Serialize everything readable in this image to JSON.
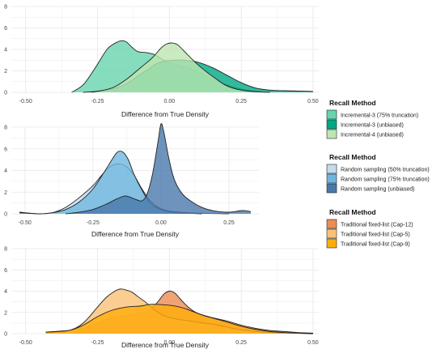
{
  "colors": {
    "grid": "#e6e6e6",
    "outline": "#222222"
  },
  "chart_data": [
    {
      "type": "area",
      "subtype": "density",
      "xlabel": "Difference from True Density",
      "ylabel": "",
      "xlim": [
        -0.55,
        0.52
      ],
      "ylim": [
        0,
        8
      ],
      "xticks": [
        -0.5,
        -0.25,
        0.0,
        0.25,
        0.5
      ],
      "xtick_labels": [
        "-0.50",
        "-0.25",
        "0.00",
        "0.25",
        "0.50"
      ],
      "yticks": [
        0,
        2,
        4,
        6,
        8
      ],
      "ytick_labels": [
        "0",
        "2",
        "4",
        "6",
        "8"
      ],
      "grid": true,
      "legend": {
        "title": "Recall Method",
        "position": "right",
        "entries": [
          "Incremental-3 (75% truncation)",
          "Incremental-3 (unbiased)",
          "Incremental-4 (unbiased)"
        ]
      },
      "series": [
        {
          "name": "Incremental-3 (75% truncation)",
          "color": "#66d4ae",
          "x": [
            -0.34,
            -0.3,
            -0.26,
            -0.22,
            -0.2,
            -0.17,
            -0.15,
            -0.13,
            -0.11,
            -0.08,
            -0.05,
            -0.02,
            0.02,
            0.07,
            0.12,
            0.17,
            0.22,
            0.27,
            0.32
          ],
          "y": [
            0,
            0.7,
            2.2,
            3.9,
            4.4,
            4.8,
            4.7,
            4.2,
            3.8,
            3.7,
            3.5,
            3.0,
            2.6,
            2.2,
            1.6,
            1.0,
            0.5,
            0.2,
            0.05
          ]
        },
        {
          "name": "Incremental-3 (unbiased)",
          "color": "#00a985",
          "x": [
            -0.3,
            -0.25,
            -0.2,
            -0.15,
            -0.1,
            -0.07,
            -0.05,
            -0.03,
            -0.01,
            0.02,
            0.05,
            0.1,
            0.15,
            0.2,
            0.25,
            0.3,
            0.35,
            0.4,
            0.45,
            0.5
          ],
          "y": [
            0,
            0.1,
            0.3,
            0.8,
            1.7,
            2.2,
            2.6,
            2.8,
            2.95,
            3.0,
            3.0,
            2.8,
            2.3,
            1.6,
            0.9,
            0.4,
            0.2,
            0.15,
            0.12,
            0.08
          ]
        },
        {
          "name": "Incremental-4 (unbiased)",
          "color": "#bde6b1",
          "x": [
            -0.27,
            -0.2,
            -0.15,
            -0.1,
            -0.06,
            -0.03,
            -0.01,
            0.01,
            0.03,
            0.06,
            0.09,
            0.12,
            0.16,
            0.2,
            0.25,
            0.3,
            0.35
          ],
          "y": [
            0,
            0.4,
            1.2,
            2.3,
            3.2,
            4.1,
            4.5,
            4.6,
            4.4,
            3.6,
            2.8,
            2.1,
            1.3,
            0.6,
            0.2,
            0.05,
            0
          ]
        }
      ]
    },
    {
      "type": "area",
      "subtype": "density",
      "xlabel": "Difference from True Density",
      "ylabel": "",
      "xlim": [
        -0.55,
        0.36
      ],
      "ylim": [
        0,
        8
      ],
      "xticks": [
        -0.5,
        -0.25,
        0.0,
        0.25
      ],
      "xtick_labels": [
        "-0.50",
        "-0.25",
        "0.00",
        "0.25"
      ],
      "yticks": [
        0,
        2,
        4,
        6,
        8
      ],
      "ytick_labels": [
        "0",
        "2",
        "4",
        "6",
        "8"
      ],
      "grid": true,
      "legend": {
        "title": "Recall Method",
        "position": "right",
        "entries": [
          "Random sampling (50% truncation)",
          "Random sampling (75% truncation)",
          "Random sampling (unbiased)"
        ]
      },
      "series": [
        {
          "name": "Random sampling (50% truncation)",
          "color": "#c3dced",
          "x": [
            -0.52,
            -0.45,
            -0.4,
            -0.35,
            -0.3,
            -0.25,
            -0.22,
            -0.19,
            -0.16,
            -0.13,
            -0.1,
            -0.07,
            -0.04,
            -0.01,
            0.02,
            0.05,
            0.1,
            0.15,
            0.2,
            0.25
          ],
          "y": [
            0.15,
            0,
            0.1,
            0.6,
            1.5,
            2.6,
            3.5,
            4.3,
            4.6,
            4.4,
            3.6,
            2.3,
            1.2,
            0.6,
            0.3,
            0.2,
            0.1,
            0.05,
            0.02,
            0
          ]
        },
        {
          "name": "Random sampling (75% truncation)",
          "color": "#6fb6de",
          "x": [
            -0.52,
            -0.45,
            -0.4,
            -0.35,
            -0.3,
            -0.25,
            -0.21,
            -0.18,
            -0.16,
            -0.14,
            -0.12,
            -0.1,
            -0.07,
            -0.04,
            -0.01,
            0.02,
            0.05,
            0.1,
            0.15
          ],
          "y": [
            0.1,
            0,
            0.1,
            0.4,
            1.1,
            2.3,
            3.8,
            5.0,
            5.7,
            5.7,
            5.0,
            3.7,
            2.2,
            1.0,
            0.5,
            0.25,
            0.1,
            0.05,
            0
          ]
        },
        {
          "name": "Random sampling (unbiased)",
          "color": "#4a78ab",
          "x": [
            -0.35,
            -0.3,
            -0.25,
            -0.2,
            -0.16,
            -0.13,
            -0.1,
            -0.07,
            -0.05,
            -0.03,
            -0.01,
            0.0,
            0.01,
            0.03,
            0.05,
            0.08,
            0.12,
            0.16,
            0.2,
            0.25,
            0.3,
            0.33
          ],
          "y": [
            0,
            0.15,
            0.4,
            0.9,
            1.4,
            1.65,
            1.4,
            1.2,
            1.9,
            3.8,
            6.8,
            8.3,
            7.6,
            5.0,
            3.1,
            1.8,
            1.0,
            0.5,
            0.25,
            0.15,
            0.3,
            0.2
          ]
        }
      ]
    },
    {
      "type": "area",
      "subtype": "density",
      "xlabel": "Difference from True Density",
      "ylabel": "",
      "xlim": [
        -0.55,
        0.52
      ],
      "ylim": [
        0,
        8
      ],
      "xticks": [
        -0.5,
        -0.25,
        0.0,
        0.25,
        0.5
      ],
      "xtick_labels": [
        "-0.50",
        "-0.25",
        "0.00",
        "0.25",
        "0.50"
      ],
      "yticks": [
        0,
        2,
        4,
        6,
        8
      ],
      "ytick_labels": [
        "0",
        "2",
        "4",
        "6",
        "8"
      ],
      "grid": true,
      "legend": {
        "title": "Recall Method",
        "position": "right",
        "entries": [
          "Traditional fixed-list (Cap-12)",
          "Traditional fixed-list (Cap-5)",
          "Traditional fixed-list (Cap-9)"
        ]
      },
      "series": [
        {
          "name": "Traditional fixed-list (Cap-12)",
          "color": "#ee8c54",
          "x": [
            -0.43,
            -0.35,
            -0.3,
            -0.25,
            -0.2,
            -0.15,
            -0.1,
            -0.07,
            -0.04,
            -0.02,
            0.0,
            0.02,
            0.04,
            0.07,
            0.1,
            0.15,
            0.2,
            0.25,
            0.3,
            0.35,
            0.4,
            0.45,
            0.5
          ],
          "y": [
            0.15,
            0.3,
            0.5,
            1.0,
            1.5,
            1.7,
            1.9,
            2.2,
            3.0,
            3.7,
            4.0,
            3.8,
            3.2,
            2.4,
            1.9,
            1.5,
            1.2,
            0.8,
            0.5,
            0.3,
            0.2,
            0.1,
            0.05
          ]
        },
        {
          "name": "Traditional fixed-list (Cap-5)",
          "color": "#fbc174",
          "x": [
            -0.43,
            -0.35,
            -0.3,
            -0.25,
            -0.22,
            -0.19,
            -0.17,
            -0.15,
            -0.13,
            -0.11,
            -0.08,
            -0.05,
            -0.02,
            0.02,
            0.07,
            0.12,
            0.17,
            0.22,
            0.27,
            0.32,
            0.37,
            0.42,
            0.5
          ],
          "y": [
            0.1,
            0.3,
            1.0,
            2.5,
            3.4,
            4.0,
            4.2,
            4.1,
            3.9,
            3.5,
            2.9,
            2.2,
            1.7,
            1.4,
            1.2,
            1.0,
            0.8,
            0.5,
            0.3,
            0.15,
            0.1,
            0.05,
            0
          ]
        },
        {
          "name": "Traditional fixed-list (Cap-9)",
          "color": "#ffad0a",
          "x": [
            -0.43,
            -0.35,
            -0.3,
            -0.25,
            -0.2,
            -0.15,
            -0.1,
            -0.07,
            -0.04,
            -0.01,
            0.02,
            0.05,
            0.08,
            0.12,
            0.16,
            0.2,
            0.25,
            0.3,
            0.35,
            0.4,
            0.45,
            0.5
          ],
          "y": [
            0.15,
            0.3,
            0.8,
            1.6,
            2.2,
            2.5,
            2.6,
            2.75,
            2.75,
            2.7,
            2.6,
            2.4,
            2.1,
            1.7,
            1.4,
            1.1,
            0.7,
            0.4,
            0.2,
            0.1,
            0.05,
            0
          ]
        }
      ]
    }
  ]
}
